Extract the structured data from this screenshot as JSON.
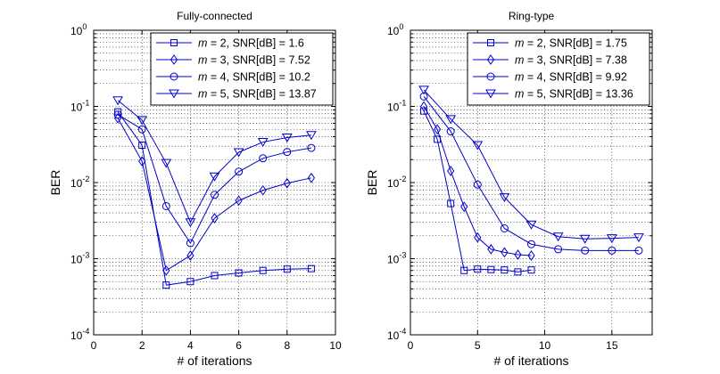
{
  "chart_data": [
    {
      "type": "line",
      "title": "Fully-connected",
      "xlabel": "# of iterations",
      "ylabel": "BER",
      "xlim": [
        0,
        10
      ],
      "ylim": [
        0.0001,
        1
      ],
      "yscale": "log",
      "grid": true,
      "legend_position": "top-right",
      "x_ticks": [
        "0",
        "2",
        "4",
        "6",
        "8",
        "10"
      ],
      "y_ticks": [
        {
          "base": "10",
          "exp": "-4"
        },
        {
          "base": "10",
          "exp": "-3"
        },
        {
          "base": "10",
          "exp": "-2"
        },
        {
          "base": "10",
          "exp": "-1"
        },
        {
          "base": "10",
          "exp": "0"
        }
      ],
      "series": [
        {
          "name_var": "m",
          "name_text": " = 2, SNR[dB] = 1.6",
          "marker": "square",
          "x": [
            1,
            2,
            3,
            4,
            5,
            6,
            7,
            8,
            9
          ],
          "y": [
            0.085,
            0.031,
            0.00045,
            0.0005,
            0.0006,
            0.00065,
            0.0007,
            0.00073,
            0.00074
          ]
        },
        {
          "name_var": "m",
          "name_text": " = 3, SNR[dB] = 7.52",
          "marker": "diamond",
          "x": [
            1,
            2,
            3,
            4,
            5,
            6,
            7,
            8,
            9
          ],
          "y": [
            0.07,
            0.019,
            0.0007,
            0.0011,
            0.0034,
            0.0058,
            0.0079,
            0.0098,
            0.0115
          ]
        },
        {
          "name_var": "m",
          "name_text": " = 4, SNR[dB] = 10.2",
          "marker": "circle",
          "x": [
            1,
            2,
            3,
            4,
            5,
            6,
            7,
            8,
            9
          ],
          "y": [
            0.078,
            0.05,
            0.0049,
            0.0016,
            0.0069,
            0.0139,
            0.0208,
            0.0252,
            0.0285
          ]
        },
        {
          "name_var": "m",
          "name_text": " = 5, SNR[dB] = 13.87",
          "marker": "triangle-down",
          "x": [
            1,
            2,
            3,
            4,
            5,
            6,
            7,
            8,
            9
          ],
          "y": [
            0.12,
            0.066,
            0.018,
            0.003,
            0.012,
            0.025,
            0.034,
            0.039,
            0.042
          ]
        }
      ]
    },
    {
      "type": "line",
      "title": "Ring-type",
      "xlabel": "# of iterations",
      "ylabel": "BER",
      "xlim": [
        0,
        18
      ],
      "ylim": [
        0.0001,
        1
      ],
      "yscale": "log",
      "grid": true,
      "legend_position": "top-right",
      "x_ticks": [
        "0",
        "5",
        "10",
        "15"
      ],
      "y_ticks": [
        {
          "base": "10",
          "exp": "-4"
        },
        {
          "base": "10",
          "exp": "-3"
        },
        {
          "base": "10",
          "exp": "-2"
        },
        {
          "base": "10",
          "exp": "-1"
        },
        {
          "base": "10",
          "exp": "0"
        }
      ],
      "series": [
        {
          "name_var": "m",
          "name_text": " = 2, SNR[dB] = 1.75",
          "marker": "square",
          "x": [
            1,
            2,
            3,
            4,
            5,
            6,
            7,
            8,
            9
          ],
          "y": [
            0.087,
            0.037,
            0.0053,
            0.0007,
            0.00073,
            0.00072,
            0.00071,
            0.00067,
            0.00071
          ]
        },
        {
          "name_var": "m",
          "name_text": " = 3, SNR[dB] = 7.38",
          "marker": "diamond",
          "x": [
            1,
            2,
            3,
            4,
            5,
            6,
            7,
            8,
            9
          ],
          "y": [
            0.1,
            0.05,
            0.0142,
            0.0048,
            0.0019,
            0.00133,
            0.00121,
            0.00113,
            0.0011
          ]
        },
        {
          "name_var": "m",
          "name_text": " = 4, SNR[dB] = 9.92",
          "marker": "circle",
          "x": [
            1,
            3,
            5,
            7,
            9,
            11,
            13,
            15,
            17
          ],
          "y": [
            0.135,
            0.047,
            0.0094,
            0.0025,
            0.00155,
            0.00133,
            0.00128,
            0.00128,
            0.00128
          ]
        },
        {
          "name_var": "m",
          "name_text": " = 5, SNR[dB] = 13.36",
          "marker": "triangle-down",
          "x": [
            1,
            3,
            5,
            7,
            9,
            11,
            13,
            15,
            17
          ],
          "y": [
            0.165,
            0.068,
            0.031,
            0.0064,
            0.0028,
            0.00195,
            0.00182,
            0.00185,
            0.0019
          ]
        }
      ]
    }
  ],
  "style": {
    "line_color": "#0000cc",
    "axis_color": "#000000",
    "grid_color": "#000000",
    "background": "#ffffff"
  }
}
